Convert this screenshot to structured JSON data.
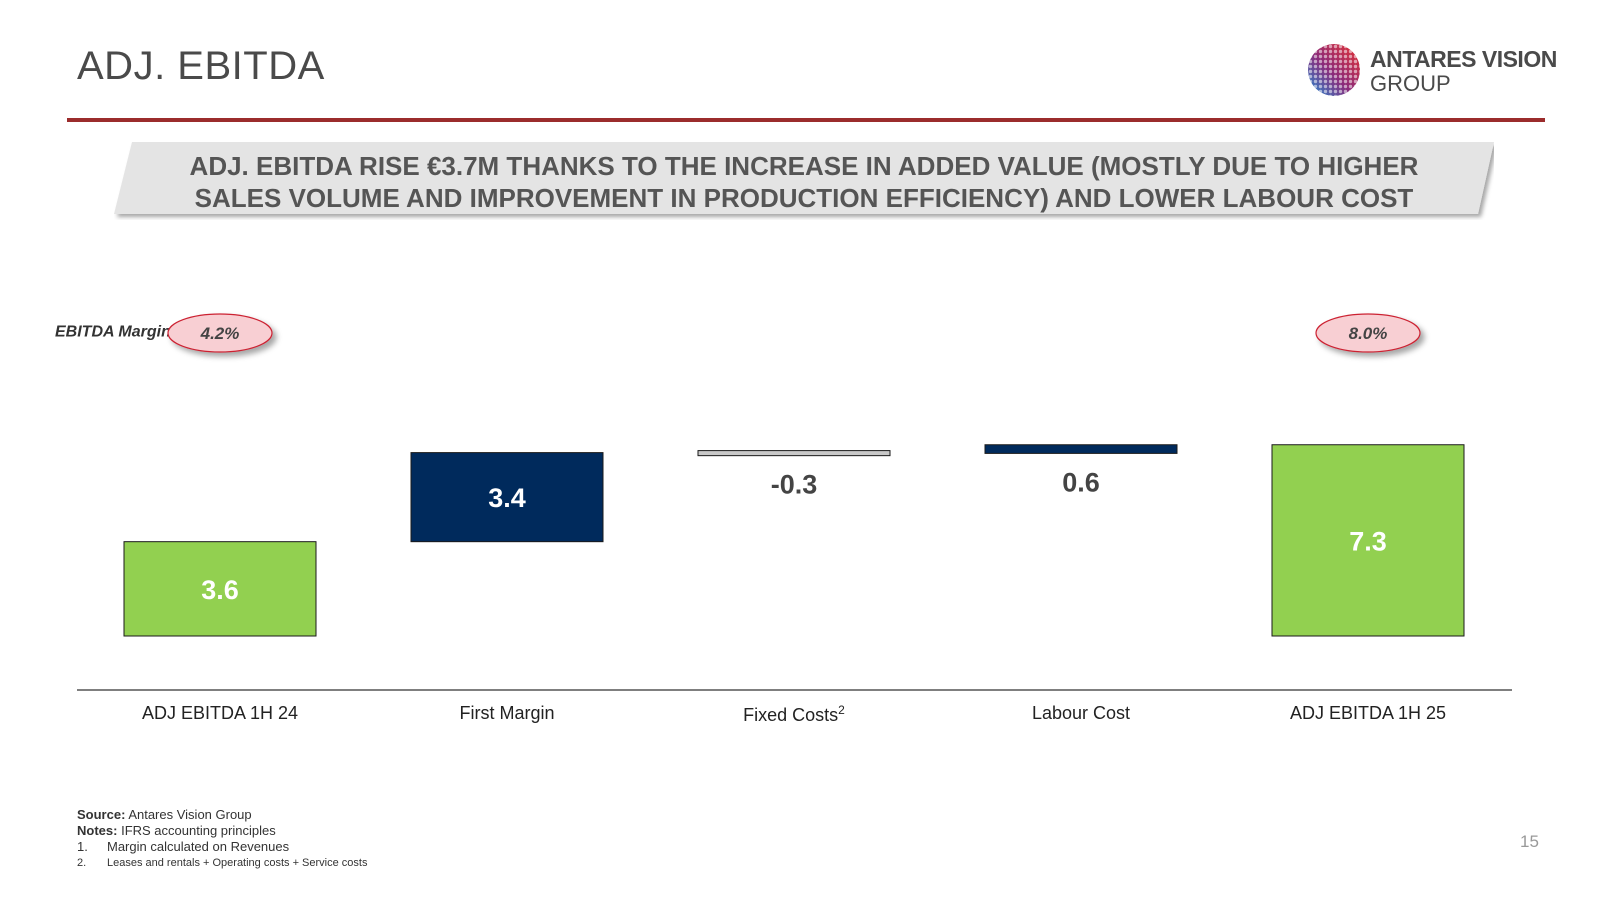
{
  "title": "ADJ. EBITDA",
  "logo": {
    "line1": "ANTARES VISION",
    "line2": "GROUP"
  },
  "headline": "ADJ. EBITDA RISE €3.7M THANKS TO THE INCREASE IN ADDED VALUE (MOSTLY DUE TO HIGHER SALES VOLUME AND IMPROVEMENT IN PRODUCTION EFFICIENCY) AND LOWER LABOUR COST",
  "margin_label": {
    "text": "EBITDA Margin (%)",
    "sup": "1"
  },
  "colors": {
    "total": "#92d050",
    "increase": "#002a5c",
    "decrease": "#c8c8c8",
    "accent": "#9b2c2c",
    "badge_fill": "#f8cfd3",
    "badge_border": "#cc2233"
  },
  "chart_data": {
    "type": "bar",
    "subtype": "waterfall",
    "categories": [
      "ADJ EBITDA  1H 24",
      "First Margin",
      "Fixed Costs",
      "Labour Cost",
      "ADJ EBITDA  1H 25"
    ],
    "category_sup": [
      "",
      "",
      "2",
      "",
      ""
    ],
    "values": [
      3.6,
      3.4,
      -0.3,
      0.6,
      7.3
    ],
    "labels": [
      "3.6",
      "3.4",
      "-0.3",
      "0.6",
      "7.3"
    ],
    "kinds": [
      "total",
      "increase",
      "decrease",
      "increase",
      "total"
    ],
    "margins": [
      {
        "index": 0,
        "label": "4.2%"
      },
      {
        "index": 4,
        "label": "8.0%"
      }
    ],
    "ylim": [
      0,
      7.3
    ],
    "grid": false,
    "legend": "none"
  },
  "footnotes": {
    "source_label": "Source:",
    "source": "Antares Vision Group",
    "notes_label": "Notes:",
    "notes": "IFRS accounting principles",
    "items": [
      {
        "num": "1.",
        "text": "Margin calculated on Revenues"
      },
      {
        "num": "2.",
        "text": "Leases and rentals + Operating costs + Service costs"
      }
    ]
  },
  "page_number": "15"
}
